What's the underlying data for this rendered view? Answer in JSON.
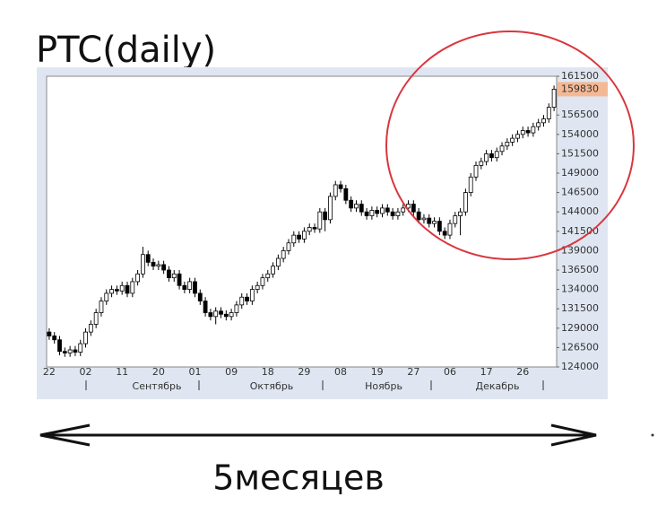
{
  "chart_data": {
    "type": "candlestick",
    "title": "PTC(daily)",
    "annotation": "5месяцев",
    "last_label": 159830,
    "month_labels": [
      "Сентябрь",
      "Октябрь",
      "Ноябрь",
      "Декабрь"
    ],
    "categories": [
      "22",
      null,
      null,
      null,
      null,
      null,
      null,
      "02",
      null,
      null,
      null,
      null,
      null,
      null,
      "11",
      null,
      null,
      null,
      null,
      null,
      null,
      "20",
      null,
      null,
      null,
      null,
      null,
      null,
      "01",
      null,
      null,
      null,
      null,
      null,
      null,
      "09",
      null,
      null,
      null,
      null,
      null,
      null,
      "18",
      null,
      null,
      null,
      null,
      null,
      null,
      "29",
      null,
      null,
      null,
      null,
      null,
      null,
      "08",
      null,
      null,
      null,
      null,
      null,
      null,
      "19",
      null,
      null,
      null,
      null,
      null,
      null,
      "27",
      null,
      null,
      null,
      null,
      null,
      null,
      "06",
      null,
      null,
      null,
      null,
      null,
      null,
      "17",
      null,
      null,
      null,
      null,
      null,
      null,
      "26",
      null,
      null,
      null,
      null,
      null,
      null
    ],
    "open": [
      128500,
      128000,
      127500,
      126000,
      125800,
      126200,
      125900,
      127000,
      128500,
      129500,
      131000,
      132500,
      133500,
      134000,
      133800,
      134500,
      133500,
      135000,
      136000,
      138500,
      137500,
      137000,
      137200,
      136500,
      135500,
      136000,
      134500,
      134000,
      135000,
      133500,
      132500,
      131000,
      130500,
      131200,
      130800,
      130500,
      131000,
      132000,
      133000,
      132500,
      134000,
      134500,
      135500,
      136000,
      137000,
      138000,
      139000,
      140000,
      141000,
      140500,
      141500,
      142000,
      141800,
      144000,
      143000,
      146000,
      147500,
      147000,
      145500,
      144500,
      145000,
      144000,
      143500,
      144200,
      143800,
      144500,
      144000,
      143500,
      144000,
      144500,
      145000,
      144000,
      143000,
      143200,
      142500,
      142800,
      141500,
      141000,
      142500,
      143500,
      144000,
      146500,
      148500,
      150000,
      150500,
      151500,
      151000,
      151800,
      152500,
      153000,
      153500,
      154000,
      154500,
      154200,
      155000,
      155500,
      156000,
      157500
    ],
    "high": [
      129000,
      128500,
      128000,
      126500,
      126700,
      126700,
      127500,
      129000,
      130000,
      131500,
      133000,
      134000,
      134500,
      134500,
      135000,
      135000,
      135500,
      136500,
      139500,
      139000,
      138000,
      137700,
      137700,
      137000,
      136500,
      136500,
      135000,
      135500,
      135500,
      134000,
      133000,
      131500,
      131700,
      131700,
      131300,
      131500,
      132500,
      133500,
      133500,
      134500,
      135000,
      136000,
      136500,
      137500,
      138500,
      139500,
      140500,
      141500,
      141500,
      142000,
      142500,
      142500,
      144500,
      144500,
      146500,
      148000,
      148000,
      147500,
      146000,
      145500,
      145500,
      144500,
      144700,
      144700,
      145000,
      145000,
      144500,
      144500,
      145000,
      145500,
      145500,
      144500,
      143700,
      143700,
      143300,
      143300,
      142000,
      143000,
      144000,
      144500,
      147000,
      149000,
      150500,
      151000,
      152000,
      152000,
      152300,
      153000,
      153500,
      154000,
      154500,
      155000,
      155000,
      155500,
      156000,
      156500,
      158000,
      160300
    ],
    "low": [
      127500,
      127000,
      125500,
      125300,
      125300,
      125400,
      125400,
      126500,
      128000,
      129000,
      130500,
      132000,
      133000,
      133300,
      133300,
      133000,
      133000,
      134500,
      135500,
      137000,
      136500,
      136500,
      136000,
      135000,
      135000,
      134000,
      133500,
      133500,
      133000,
      132000,
      130500,
      130000,
      129500,
      130300,
      130000,
      130000,
      130500,
      131500,
      132000,
      132000,
      133500,
      134000,
      135000,
      135500,
      136500,
      137500,
      138500,
      139500,
      140000,
      140000,
      141000,
      141300,
      141300,
      141500,
      142500,
      145500,
      146500,
      145000,
      144000,
      144000,
      143500,
      143000,
      143000,
      143300,
      143300,
      143500,
      143000,
      143000,
      143500,
      144000,
      143500,
      142500,
      142500,
      142000,
      142000,
      141000,
      140500,
      140500,
      142000,
      141000,
      143500,
      146000,
      148000,
      149500,
      150000,
      150500,
      150500,
      151300,
      152000,
      152500,
      153000,
      153500,
      153700,
      153700,
      154500,
      155000,
      155500,
      157000
    ],
    "close": [
      128000,
      127500,
      126000,
      125800,
      126200,
      125900,
      127000,
      128500,
      129500,
      131000,
      132500,
      133500,
      134000,
      133800,
      134500,
      133500,
      135000,
      136000,
      138500,
      137500,
      137000,
      137200,
      136500,
      135500,
      136000,
      134500,
      134000,
      135000,
      133500,
      132500,
      131000,
      130500,
      131200,
      130800,
      130500,
      131000,
      132000,
      133000,
      132500,
      134000,
      134500,
      135500,
      136000,
      137000,
      138000,
      139000,
      140000,
      141000,
      140500,
      141500,
      142000,
      141800,
      144000,
      143000,
      146000,
      147500,
      147000,
      145500,
      144500,
      145000,
      144000,
      143500,
      144200,
      143800,
      144500,
      144000,
      143500,
      144000,
      144500,
      145000,
      144000,
      143000,
      143200,
      142500,
      142800,
      141500,
      141000,
      142500,
      143500,
      144000,
      146500,
      148500,
      150000,
      150500,
      151500,
      151000,
      151800,
      152500,
      153000,
      153500,
      154000,
      154500,
      154200,
      155000,
      155500,
      156000,
      157500,
      159830
    ],
    "ylim": [
      124000,
      161500
    ],
    "yticks": [
      124000,
      126500,
      129000,
      131500,
      134000,
      136500,
      139000,
      141500,
      144000,
      146500,
      149000,
      151500,
      154000,
      156500,
      161500
    ],
    "up_color": "#ffffff",
    "down_color": "#000000",
    "last_label_color": "#f5b895",
    "highlight_color": "#d9363e"
  }
}
